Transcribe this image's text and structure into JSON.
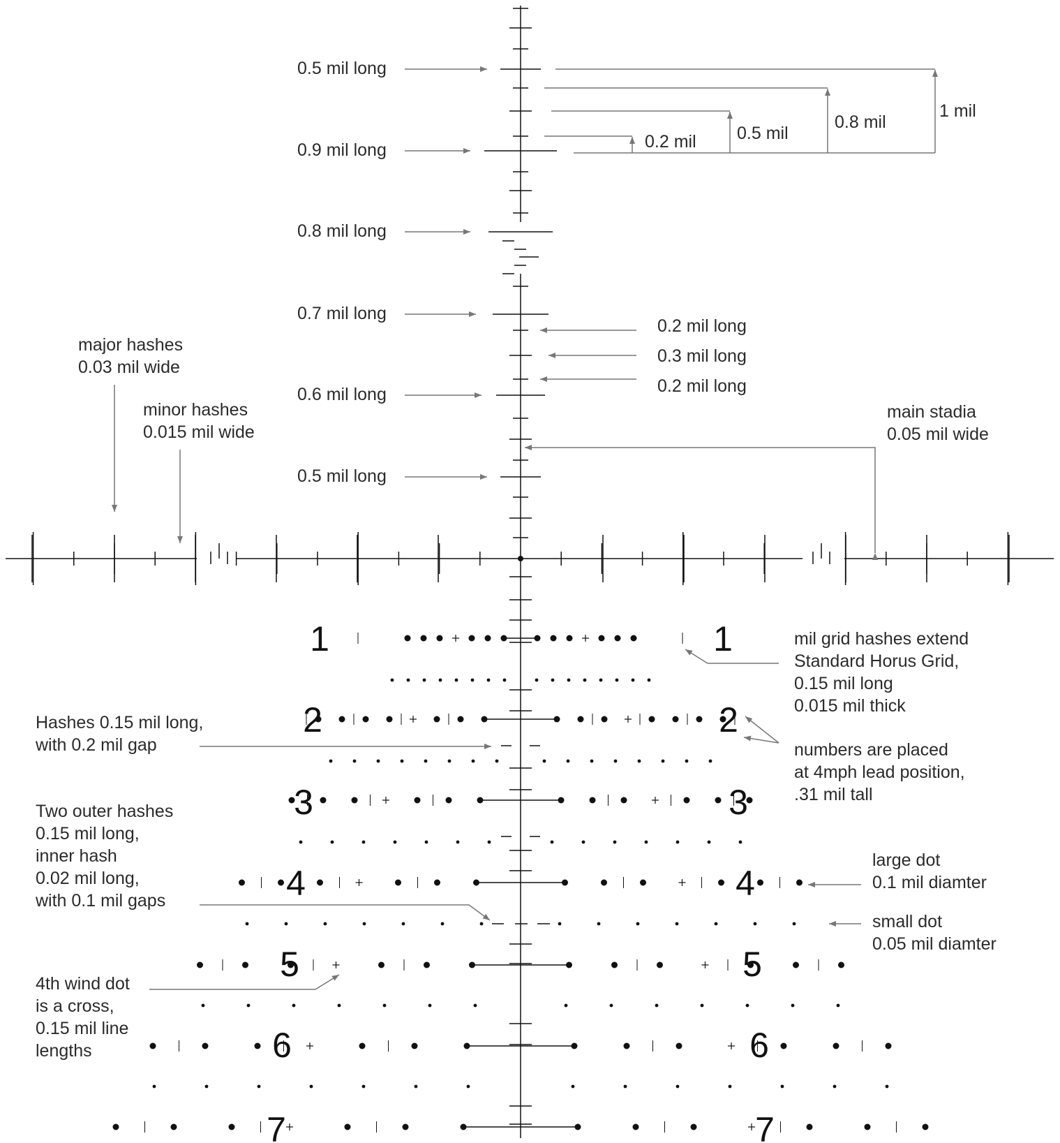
{
  "colors": {
    "reticle": "#111111",
    "annotation": "#777777",
    "text": "#2b2b2b"
  },
  "numbers": [
    "1",
    "2",
    "3",
    "4",
    "5",
    "6",
    "7"
  ],
  "annotations": {
    "upper_stadia": {
      "half_mil_top": "0.5 mil long",
      "nine_tenths": "0.9 mil long",
      "eight_tenths": "0.8 mil long",
      "seven_tenths": "0.7 mil long",
      "six_tenths": "0.6 mil long",
      "half_mil_bottom": "0.5 mil long"
    },
    "subtensions": [
      "0.2 mil",
      "0.5 mil",
      "0.8 mil",
      "1 mil"
    ],
    "minor_lengths": [
      "0.2 mil long",
      "0.3 mil long",
      "0.2 mil long"
    ],
    "major_hashes": [
      "major hashes",
      "0.03 mil wide"
    ],
    "minor_hashes": [
      "minor hashes",
      "0.015 mil wide"
    ],
    "main_stadia": [
      "main stadia",
      "0.05 mil wide"
    ],
    "grid_hashes": [
      "mil grid hashes extend",
      "Standard Horus Grid,",
      "0.15 mil long",
      "0.015 mil thick"
    ],
    "gap_hashes": [
      "Hashes 0.15 mil long,",
      "with 0.2 mil gap"
    ],
    "numbers_note": [
      "numbers are placed",
      "at 4mph lead position,",
      ".31 mil tall"
    ],
    "outer_hashes": [
      "Two outer hashes",
      "0.15 mil long,",
      "inner hash",
      "0.02 mil long,",
      "with 0.1 mil gaps"
    ],
    "large_dot": [
      "large dot",
      "0.1 mil diamter"
    ],
    "small_dot": [
      "small dot",
      "0.05 mil diamter"
    ],
    "wind_dot": [
      "4th wind dot",
      "is a cross,",
      "0.15 mil line",
      "lengths"
    ]
  }
}
